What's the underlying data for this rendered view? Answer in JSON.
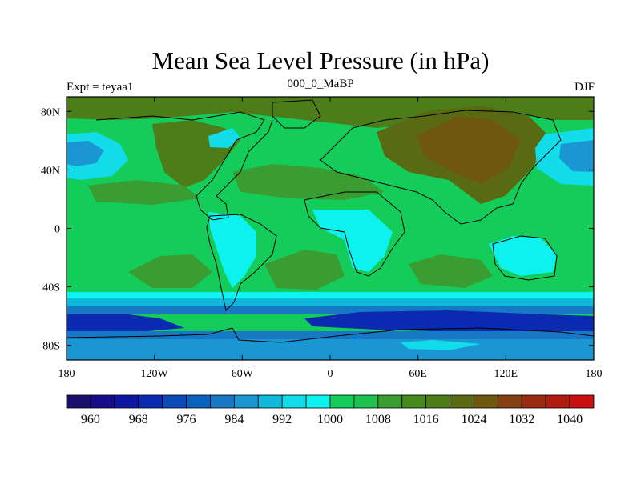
{
  "header": {
    "title": "Mean Sea Level Pressure (in hPa)",
    "left_label": "Expt = teyaa1",
    "center_label": "000_0_MaBP",
    "right_label": "DJF"
  },
  "map": {
    "lon_ticks": [
      "180",
      "120W",
      "60W",
      "0",
      "60E",
      "120E",
      "180"
    ],
    "lat_ticks": [
      "80N",
      "40N",
      "0",
      "40S",
      "80S"
    ],
    "lat_values": [
      80,
      40,
      0,
      -40,
      -80
    ],
    "lon_values": [
      -180,
      -120,
      -60,
      0,
      60,
      120,
      180
    ],
    "lon_range": [
      -180,
      180
    ],
    "lat_range": [
      -90,
      90
    ]
  },
  "colorbar": {
    "levels": [
      956,
      960,
      964,
      968,
      972,
      976,
      980,
      984,
      988,
      992,
      996,
      1000,
      1004,
      1008,
      1012,
      1016,
      1020,
      1024,
      1028,
      1032,
      1036,
      1040,
      1044
    ],
    "colors": [
      "#1a0f6b",
      "#160c8a",
      "#0e17a2",
      "#0a2ab2",
      "#0b4ab7",
      "#0a63bd",
      "#1778c6",
      "#1a96d2",
      "#10b9dc",
      "#12dcea",
      "#0df2ee",
      "#14cc5a",
      "#1fc24e",
      "#3a9d32",
      "#468a1c",
      "#4d7d18",
      "#5a6a12",
      "#6e5810",
      "#874012",
      "#9a2a10",
      "#b01c0e",
      "#c81010"
    ],
    "labels": [
      "960",
      "968",
      "976",
      "984",
      "992",
      "1000",
      "1008",
      "1016",
      "1024",
      "1032",
      "1040"
    ],
    "label_values": [
      960,
      968,
      976,
      984,
      992,
      1000,
      1008,
      1016,
      1024,
      1032,
      1040
    ]
  }
}
